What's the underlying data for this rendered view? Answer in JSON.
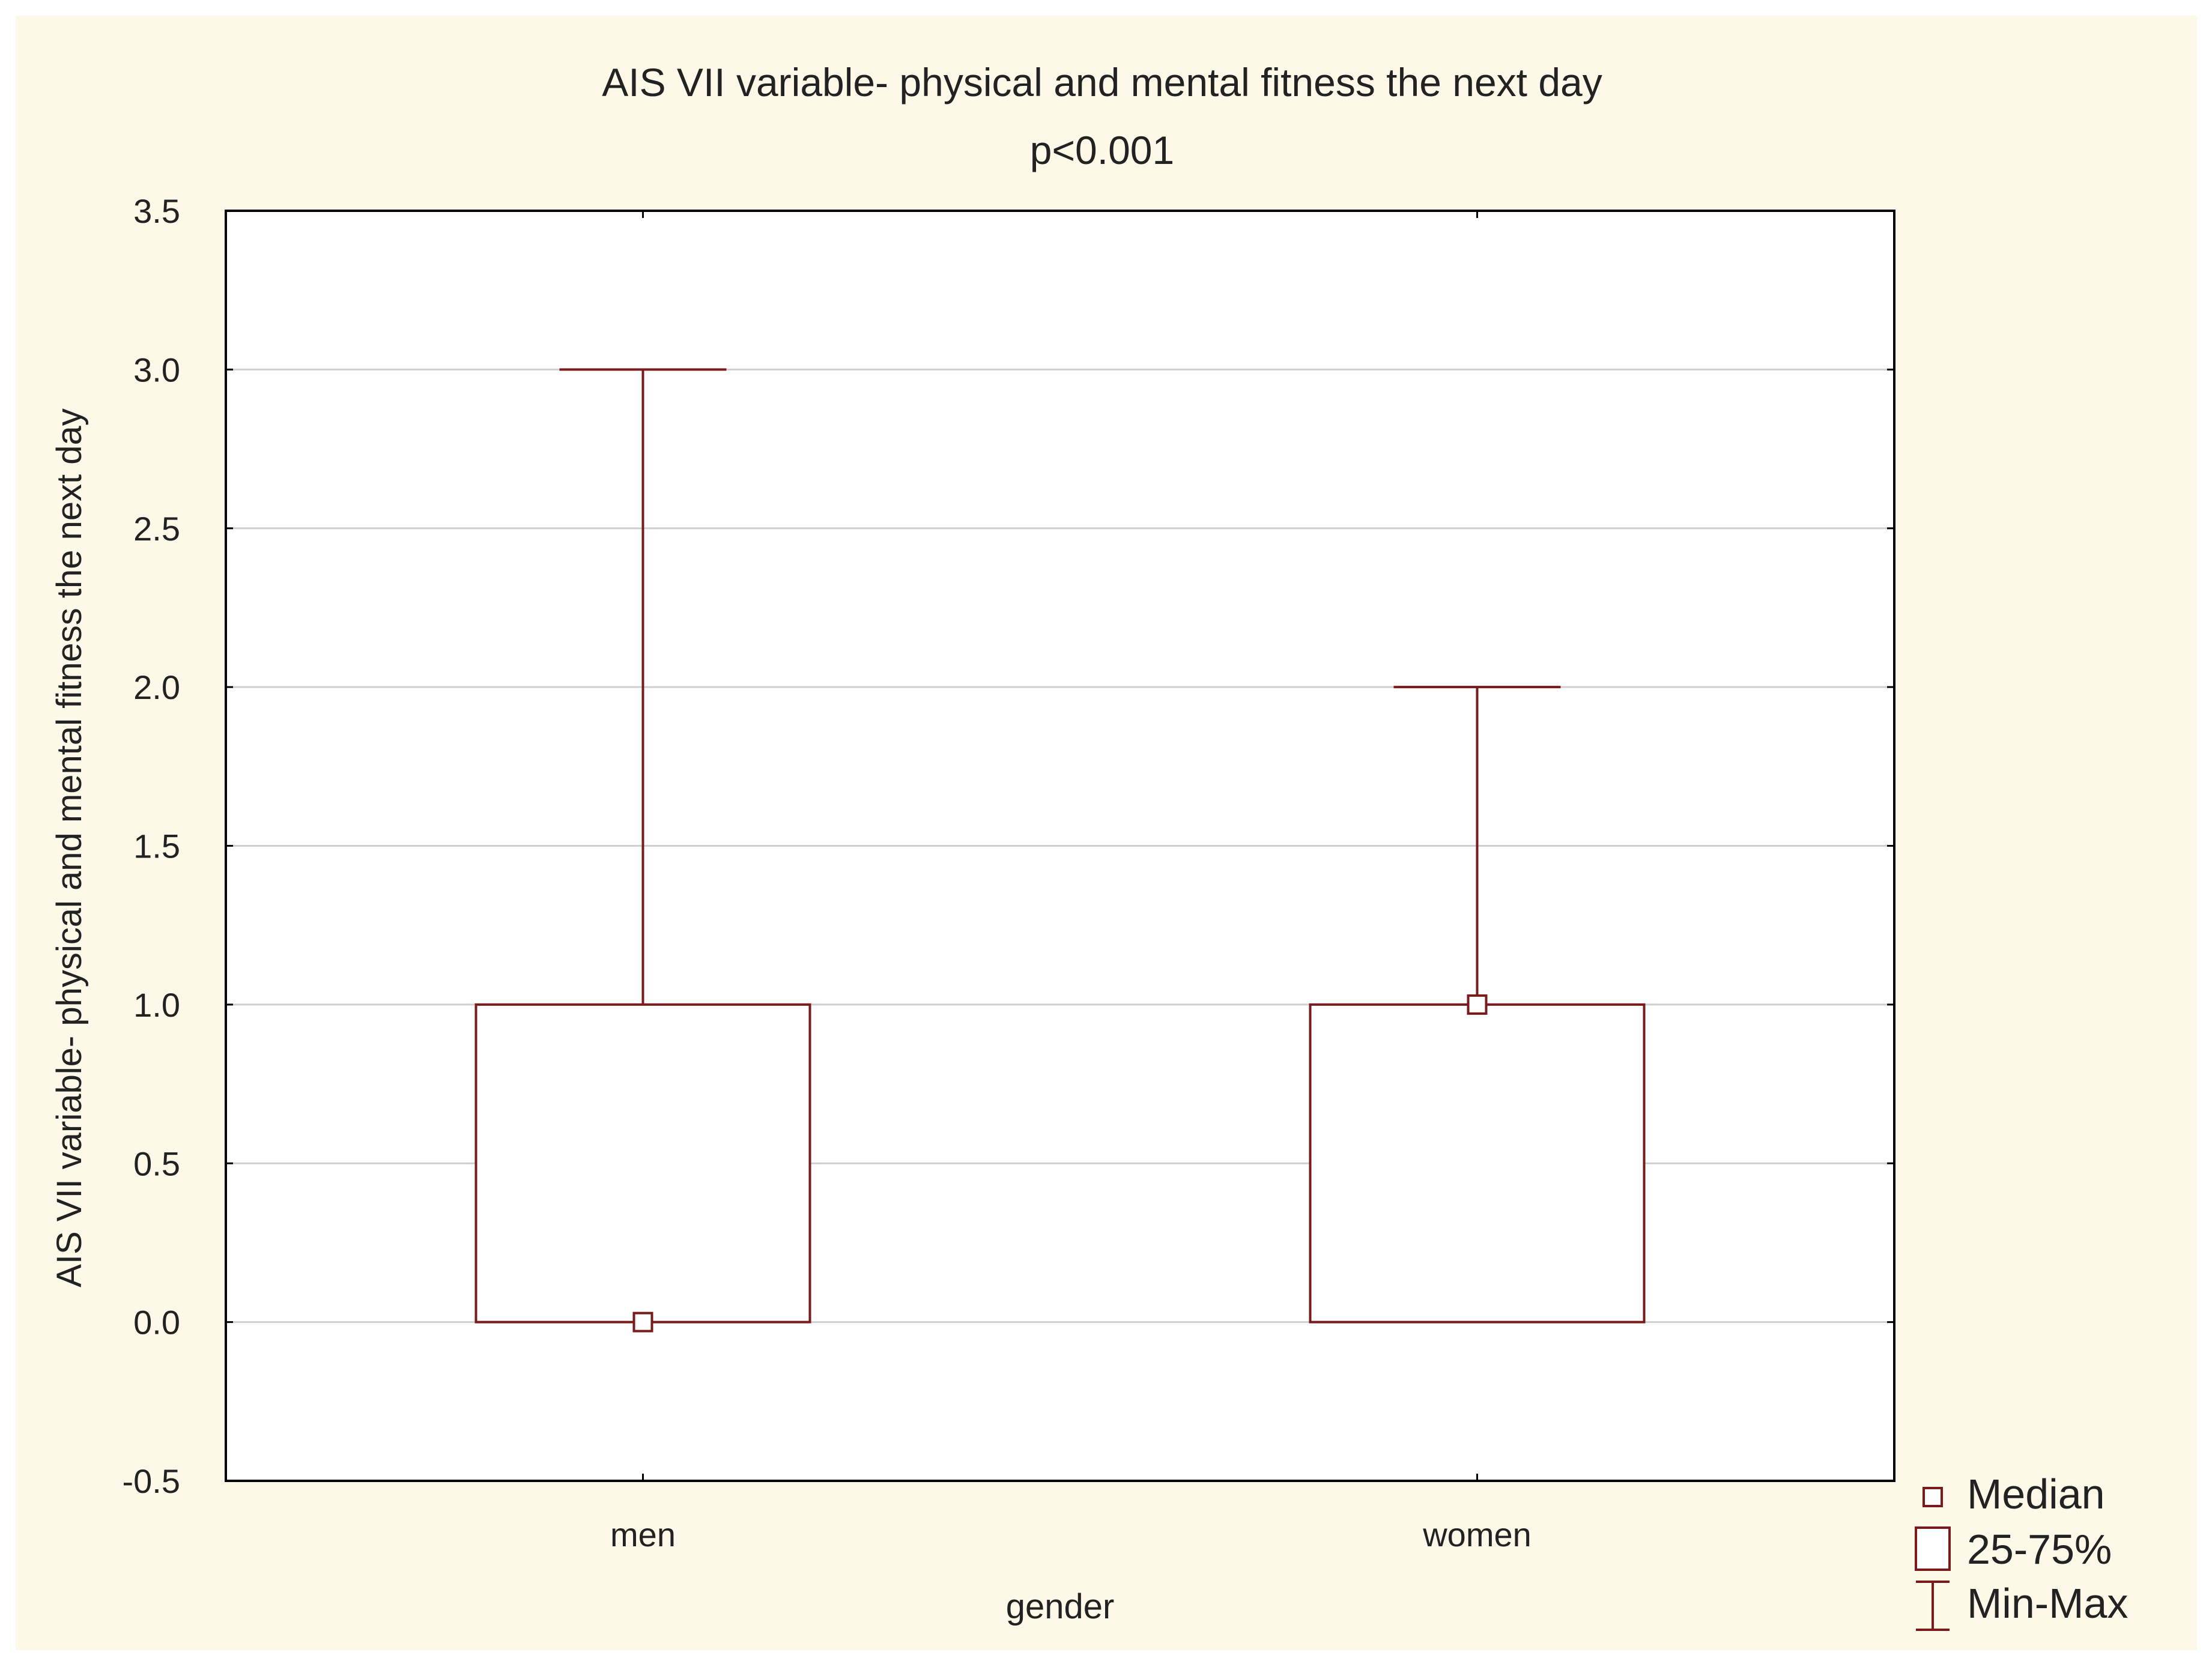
{
  "chart_data": {
    "type": "box",
    "title": "AIS VII variable- physical and mental fitness the next day",
    "subtitle": "p<0.001",
    "xlabel": "gender",
    "ylabel": "AIS VII variable- physical and mental fitness the next day",
    "ylim": [
      -0.5,
      3.5
    ],
    "yticks": [
      "-0.5",
      "0.0",
      "0.5",
      "1.0",
      "1.5",
      "2.0",
      "2.5",
      "3.0",
      "3.5"
    ],
    "ytick_values": [
      -0.5,
      0.0,
      0.5,
      1.0,
      1.5,
      2.0,
      2.5,
      3.0,
      3.5
    ],
    "categories": [
      "men",
      "women"
    ],
    "boxes": [
      {
        "category": "men",
        "min": 0,
        "q1": 0,
        "median": 0,
        "q3": 1,
        "max": 3
      },
      {
        "category": "women",
        "min": 0,
        "q1": 0,
        "median": 1,
        "q3": 1,
        "max": 2
      }
    ],
    "grid": true,
    "legend_position": "bottom-right",
    "legend": [
      {
        "symbol": "median-marker",
        "label": "Median"
      },
      {
        "symbol": "box",
        "label": "25-75%"
      },
      {
        "symbol": "whisker",
        "label": "Min-Max"
      }
    ],
    "colors": {
      "box": "#7a1a1a",
      "background": "#fdf8e8",
      "plot_background": "#ffffff",
      "grid": "#cfcfcf",
      "axis": "#000000"
    }
  }
}
